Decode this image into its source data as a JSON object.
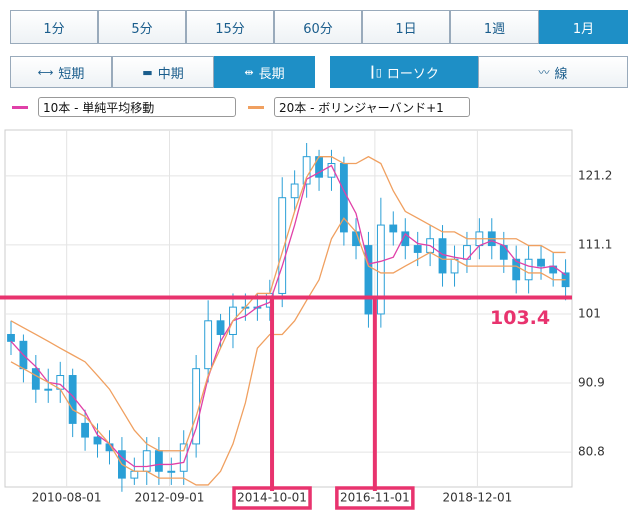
{
  "timeframes": {
    "items": [
      "1分",
      "5分",
      "15分",
      "60分",
      "1日",
      "1週",
      "1月"
    ],
    "selected": 6
  },
  "ranges": {
    "items": [
      "短期",
      "中期",
      "長期"
    ],
    "selected": 2
  },
  "styles": {
    "items": [
      "ローソク",
      "線"
    ],
    "selected": 0
  },
  "chart_data": {
    "type": "candlestick",
    "x": [
      "2009-05-01",
      "2009-08-01",
      "2009-11-01",
      "2010-02-01",
      "2010-05-01",
      "2010-08-01",
      "2010-11-01",
      "2011-02-01",
      "2011-05-01",
      "2011-08-01",
      "2011-11-01",
      "2012-02-01",
      "2012-05-01",
      "2012-08-01",
      "2012-11-01",
      "2013-02-01",
      "2013-05-01",
      "2013-08-01",
      "2013-11-01",
      "2014-02-01",
      "2014-05-01",
      "2014-08-01",
      "2014-11-01",
      "2015-02-01",
      "2015-05-01",
      "2015-08-01",
      "2015-11-01",
      "2016-02-01",
      "2016-05-01",
      "2016-08-01",
      "2016-11-01",
      "2017-02-01",
      "2017-05-01",
      "2017-08-01",
      "2017-11-01",
      "2018-02-01",
      "2018-05-01",
      "2018-08-01",
      "2018-11-01",
      "2019-02-01",
      "2019-05-01",
      "2019-08-01",
      "2019-11-01",
      "2020-02-01",
      "2020-05-01",
      "2020-08-01"
    ],
    "open": [
      98,
      97,
      93,
      90,
      90,
      92,
      85,
      83,
      82,
      81,
      77,
      78,
      81,
      78,
      78,
      82,
      93,
      100,
      98,
      102,
      102,
      102,
      104,
      118,
      120,
      124,
      121,
      123,
      113,
      111,
      101,
      114,
      113,
      111,
      110,
      112,
      107,
      109,
      111,
      113,
      111,
      109,
      106,
      109,
      108,
      107
    ],
    "high": [
      100,
      98,
      95,
      93,
      94,
      93,
      87,
      85,
      84,
      83,
      80,
      83,
      83,
      80,
      84,
      95,
      103,
      101,
      104,
      104,
      104,
      106,
      121,
      122,
      126,
      125,
      125,
      124,
      115,
      113,
      118,
      116,
      115,
      113,
      114,
      114,
      111,
      113,
      115,
      115,
      113,
      111,
      111,
      111,
      110,
      109
    ],
    "low": [
      95,
      91,
      88,
      88,
      88,
      83,
      81,
      80,
      79,
      75,
      76,
      76,
      76,
      76,
      76,
      80,
      91,
      96,
      96,
      100,
      100,
      100,
      102,
      116,
      118,
      119,
      119,
      111,
      109,
      99,
      99,
      111,
      109,
      108,
      108,
      105,
      105,
      107,
      109,
      109,
      107,
      104,
      104,
      106,
      105,
      103
    ],
    "close": [
      97,
      93,
      90,
      90,
      92,
      85,
      83,
      82,
      81,
      77,
      78,
      81,
      78,
      78,
      82,
      93,
      100,
      98,
      102,
      102,
      102,
      104,
      118,
      120,
      124,
      121,
      123,
      113,
      111,
      101,
      114,
      113,
      111,
      110,
      112,
      107,
      109,
      111,
      113,
      111,
      109,
      106,
      109,
      108,
      107,
      105
    ],
    "color": "#2a9fd6",
    "series": [
      {
        "name": "10本 - 単純平均移動",
        "color": "#e040a8",
        "values": [
          97,
          95,
          93.3,
          91,
          90.7,
          89,
          86.7,
          83.3,
          82,
          80,
          78.7,
          78.7,
          79,
          79,
          79.3,
          84.3,
          91.7,
          97,
          100,
          100.7,
          102,
          102.7,
          108,
          114,
          120.7,
          121.7,
          122.7,
          119,
          115.7,
          108.3,
          108.7,
          109.3,
          112.7,
          111.3,
          111,
          109.7,
          109.3,
          109,
          111,
          111.7,
          111,
          108.7,
          108,
          107.7,
          108,
          106.7
        ]
      },
      {
        "name": "20本 - ボリンジャーバンド+1",
        "color": "#f0a060",
        "upper": [
          100,
          99,
          98,
          97,
          96,
          95,
          94,
          92,
          90,
          87,
          84,
          82,
          81,
          81,
          81,
          86,
          92,
          96,
          100,
          102,
          104,
          104,
          110,
          116,
          121,
          124,
          124,
          123,
          123,
          124,
          123,
          119,
          116,
          115,
          114,
          113,
          113,
          112,
          112,
          112,
          112,
          112,
          111,
          111,
          110,
          110
        ],
        "lower": [
          94,
          93,
          92,
          91,
          90,
          87,
          86,
          84,
          82,
          79,
          78,
          78,
          77,
          77,
          77,
          76,
          76,
          78,
          82,
          88,
          96,
          98,
          98,
          100,
          103,
          106,
          112,
          115,
          113,
          108,
          107,
          107,
          108,
          109,
          110,
          109,
          109,
          108,
          108,
          108,
          108,
          108,
          107,
          107,
          106,
          106
        ]
      }
    ],
    "xlim": [
      "2009-05-01",
      "2020-11-01"
    ],
    "xticks": [
      "2010-08-01",
      "2012-09-01",
      "2014-10-01",
      "2016-11-01",
      "2018-12-01"
    ],
    "ylim": [
      75.7,
      127.9
    ],
    "yticks": [
      121.2,
      111.1,
      101,
      90.9,
      80.8
    ],
    "grid": true,
    "hline": {
      "value": 103.4,
      "color": "#e8336e"
    },
    "highlight_xticks": [
      2,
      3
    ]
  }
}
